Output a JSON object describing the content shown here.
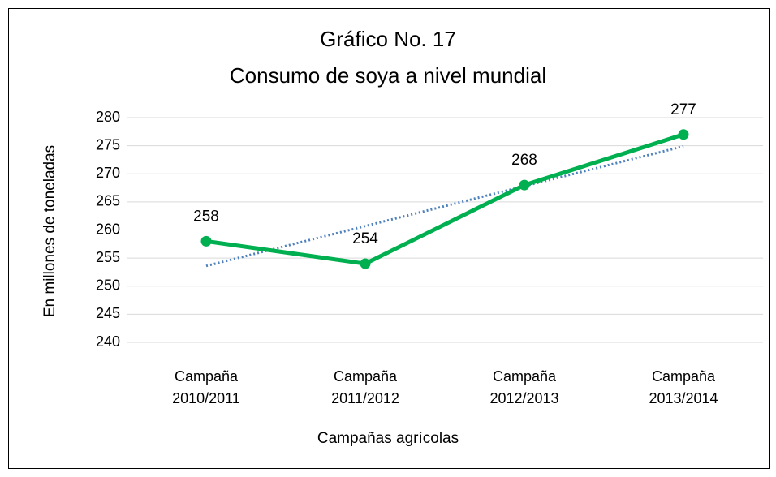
{
  "chart_data": {
    "type": "line",
    "title": [
      "Gráfico No. 17",
      "Consumo de soya a nivel mundial"
    ],
    "x_label": "Campañas agrícolas",
    "y_label": "En millones de toneladas",
    "categories": [
      "Campaña 2010/2011",
      "Campaña 2011/2012",
      "Campaña 2012/2013",
      "Campaña 2013/2014"
    ],
    "series": [
      {
        "name": "Consumo",
        "color": "#00b050",
        "values": [
          258,
          254,
          268,
          277
        ]
      }
    ],
    "trendline": {
      "color": "#4f81bd",
      "values": [
        253.6,
        260.7,
        267.8,
        274.9
      ]
    },
    "ylim": [
      240,
      280
    ],
    "yticks": [
      240,
      245,
      250,
      255,
      260,
      265,
      270,
      275,
      280
    ],
    "grid": true
  }
}
